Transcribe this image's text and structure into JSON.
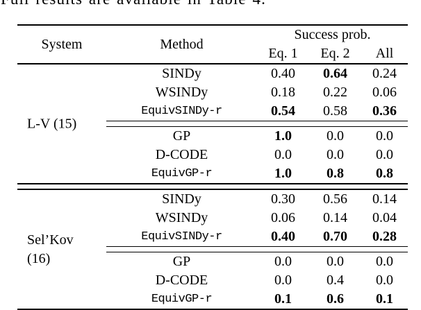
{
  "page": {
    "intro_text": "Full results are available in Table 4.",
    "colors": {
      "text": "#000000",
      "background": "#ffffff"
    }
  },
  "table": {
    "header": {
      "system": "System",
      "method": "Method",
      "success_prob": "Success prob.",
      "subcols": [
        "Eq. 1",
        "Eq. 2",
        "All"
      ]
    },
    "blocks": [
      {
        "system_label": "L-V (15)",
        "system_label_lines": [
          "L-V (15)"
        ],
        "rows": [
          {
            "method": "SINDy",
            "mono": false,
            "values": [
              "0.40",
              "0.64",
              "0.24"
            ],
            "bold": [
              false,
              true,
              false
            ]
          },
          {
            "method": "WSINDy",
            "mono": false,
            "values": [
              "0.18",
              "0.22",
              "0.06"
            ],
            "bold": [
              false,
              false,
              false
            ]
          },
          {
            "method": "EquivSINDy-r",
            "mono": true,
            "values": [
              "0.54",
              "0.58",
              "0.36"
            ],
            "bold": [
              true,
              false,
              true
            ]
          },
          {
            "method": "GP",
            "mono": false,
            "values": [
              "1.0",
              "0.0",
              "0.0"
            ],
            "bold": [
              true,
              false,
              false
            ]
          },
          {
            "method": "D-CODE",
            "mono": false,
            "values": [
              "0.0",
              "0.0",
              "0.0"
            ],
            "bold": [
              false,
              false,
              false
            ]
          },
          {
            "method": "EquivGP-r",
            "mono": true,
            "values": [
              "1.0",
              "0.8",
              "0.8"
            ],
            "bold": [
              true,
              true,
              true
            ]
          }
        ]
      },
      {
        "system_label": "Sel’Kov (16)",
        "system_label_lines": [
          "Sel’Kov",
          "(16)"
        ],
        "rows": [
          {
            "method": "SINDy",
            "mono": false,
            "values": [
              "0.30",
              "0.56",
              "0.14"
            ],
            "bold": [
              false,
              false,
              false
            ]
          },
          {
            "method": "WSINDy",
            "mono": false,
            "values": [
              "0.06",
              "0.14",
              "0.04"
            ],
            "bold": [
              false,
              false,
              false
            ]
          },
          {
            "method": "EquivSINDy-r",
            "mono": true,
            "values": [
              "0.40",
              "0.70",
              "0.28"
            ],
            "bold": [
              true,
              true,
              true
            ]
          },
          {
            "method": "GP",
            "mono": false,
            "values": [
              "0.0",
              "0.0",
              "0.0"
            ],
            "bold": [
              false,
              false,
              false
            ]
          },
          {
            "method": "D-CODE",
            "mono": false,
            "values": [
              "0.0",
              "0.4",
              "0.0"
            ],
            "bold": [
              false,
              false,
              false
            ]
          },
          {
            "method": "EquivGP-r",
            "mono": true,
            "values": [
              "0.1",
              "0.6",
              "0.1"
            ],
            "bold": [
              true,
              true,
              true
            ]
          }
        ]
      }
    ]
  }
}
